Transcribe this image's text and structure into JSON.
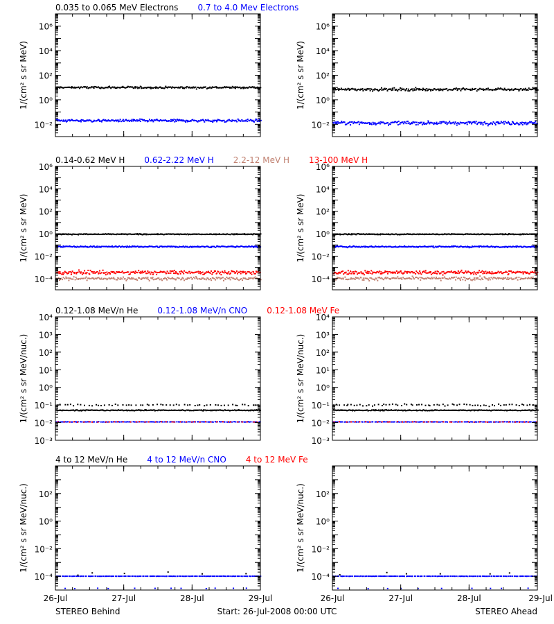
{
  "colors": {
    "black": "#000000",
    "blue": "#0000ff",
    "salmon": "#c08070",
    "red": "#ff0000"
  },
  "footer": {
    "left": "STEREO Behind",
    "center": "Start: 26-Jul-2008 00:00 UTC",
    "right": "STEREO Ahead"
  },
  "x_axis": {
    "range_days": [
      0,
      3
    ],
    "ticks": [
      {
        "value": 0,
        "label": "26-Jul"
      },
      {
        "value": 1,
        "label": "27-Jul"
      },
      {
        "value": 2,
        "label": "28-Jul"
      },
      {
        "value": 3,
        "label": "29-Jul"
      }
    ]
  },
  "chart_data": [
    {
      "type": "scatter",
      "row": "electrons",
      "ylabel": "1/(cm² s sr MeV)",
      "yscale": "log",
      "ylim_log10": [
        -3,
        7
      ],
      "yticks": [
        {
          "exp": -2,
          "label": "10⁻²"
        },
        {
          "exp": 0,
          "label": "10⁰"
        },
        {
          "exp": 2,
          "label": "10²"
        },
        {
          "exp": 4,
          "label": "10⁴"
        },
        {
          "exp": 6,
          "label": "10⁶"
        }
      ],
      "legend": [
        {
          "text": "0.035 to 0.065 MeV Electrons",
          "color": "#000000"
        },
        {
          "text": "0.7 to 4.0 Mev Electrons",
          "color": "#0000ff"
        }
      ],
      "panels": [
        {
          "spacecraft": "STEREO Behind",
          "series": [
            {
              "color": "#000000",
              "level": 10,
              "spread": 0.07,
              "density": 240
            },
            {
              "color": "#0000ff",
              "level": 0.02,
              "spread": 0.09,
              "density": 260
            }
          ]
        },
        {
          "spacecraft": "STEREO Ahead",
          "series": [
            {
              "color": "#000000",
              "level": 7,
              "spread": 0.09,
              "density": 240
            },
            {
              "color": "#0000ff",
              "level": 0.013,
              "spread": 0.12,
              "density": 260
            }
          ]
        }
      ]
    },
    {
      "type": "scatter",
      "row": "protons",
      "ylabel": "1/(cm² s sr MeV)",
      "yscale": "log",
      "ylim_log10": [
        -5,
        6
      ],
      "yticks": [
        {
          "exp": -4,
          "label": "10⁻⁴"
        },
        {
          "exp": -2,
          "label": "10⁻²"
        },
        {
          "exp": 0,
          "label": "10⁰"
        },
        {
          "exp": 2,
          "label": "10²"
        },
        {
          "exp": 4,
          "label": "10⁴"
        },
        {
          "exp": 6,
          "label": "10⁶"
        }
      ],
      "legend": [
        {
          "text": "0.14-0.62 MeV H",
          "color": "#000000"
        },
        {
          "text": "0.62-2.22 MeV H",
          "color": "#0000ff"
        },
        {
          "text": "2.2-12 MeV H",
          "color": "#c08070"
        },
        {
          "text": "13-100 MeV H",
          "color": "#ff0000"
        }
      ],
      "panels": [
        {
          "spacecraft": "STEREO Behind",
          "series": [
            {
              "color": "#000000",
              "level": 0.9,
              "spread": 0.03,
              "density": 260
            },
            {
              "color": "#0000ff",
              "level": 0.07,
              "spread": 0.05,
              "density": 260
            },
            {
              "color": "#c08070",
              "level": 0.0001,
              "spread": 0.12,
              "density": 200
            },
            {
              "color": "#ff0000",
              "level": 0.00035,
              "spread": 0.14,
              "density": 240
            }
          ]
        },
        {
          "spacecraft": "STEREO Ahead",
          "series": [
            {
              "color": "#000000",
              "level": 0.9,
              "spread": 0.03,
              "density": 260
            },
            {
              "color": "#0000ff",
              "level": 0.07,
              "spread": 0.05,
              "density": 260
            },
            {
              "color": "#c08070",
              "level": 0.0001,
              "spread": 0.12,
              "density": 200
            },
            {
              "color": "#ff0000",
              "level": 0.00035,
              "spread": 0.14,
              "density": 240
            }
          ]
        }
      ]
    },
    {
      "type": "scatter",
      "row": "heavy-ions-low",
      "ylabel": "1/(cm² s sr MeV/nuc.)",
      "yscale": "log",
      "ylim_log10": [
        -3,
        4
      ],
      "yticks": [
        {
          "exp": -3,
          "label": "10⁻³"
        },
        {
          "exp": -2,
          "label": "10⁻²"
        },
        {
          "exp": -1,
          "label": "10⁻¹"
        },
        {
          "exp": 0,
          "label": "10⁰"
        },
        {
          "exp": 1,
          "label": "10¹"
        },
        {
          "exp": 2,
          "label": "10²"
        },
        {
          "exp": 3,
          "label": "10³"
        },
        {
          "exp": 4,
          "label": "10⁴"
        }
      ],
      "legend": [
        {
          "text": "0.12-1.08 MeV/n He",
          "color": "#000000"
        },
        {
          "text": "0.12-1.08 MeV/n CNO",
          "color": "#0000ff"
        },
        {
          "text": "0.12-1.08 MeV Fe",
          "color": "#ff0000"
        }
      ],
      "panels": [
        {
          "spacecraft": "STEREO Behind",
          "series": [
            {
              "color": "#000000",
              "level": 0.05,
              "spread": 0.02,
              "density": 260
            },
            {
              "color": "#000000",
              "level": 0.1,
              "spread": 0.04,
              "density": 60
            },
            {
              "color": "#0000ff",
              "level": 0.011,
              "spread": 0.01,
              "density": 140
            },
            {
              "color": "#ff0000",
              "level": 0.011,
              "spread": 0.01,
              "density": 40
            }
          ]
        },
        {
          "spacecraft": "STEREO Ahead",
          "series": [
            {
              "color": "#000000",
              "level": 0.05,
              "spread": 0.02,
              "density": 260
            },
            {
              "color": "#000000",
              "level": 0.1,
              "spread": 0.05,
              "density": 70
            },
            {
              "color": "#0000ff",
              "level": 0.011,
              "spread": 0.01,
              "density": 140
            },
            {
              "color": "#ff0000",
              "level": 0.011,
              "spread": 0.01,
              "density": 40
            }
          ]
        }
      ]
    },
    {
      "type": "scatter",
      "row": "heavy-ions-high",
      "ylabel": "1/(cm² s sr MeV/nuc.)",
      "yscale": "log",
      "ylim_log10": [
        -5,
        4
      ],
      "yticks": [
        {
          "exp": -4,
          "label": "10⁻⁴"
        },
        {
          "exp": -2,
          "label": "10⁻²"
        },
        {
          "exp": 0,
          "label": "10⁰"
        },
        {
          "exp": 2,
          "label": "10²"
        }
      ],
      "legend": [
        {
          "text": "4 to 12 MeV/n He",
          "color": "#000000"
        },
        {
          "text": "4 to 12 MeV/n CNO",
          "color": "#0000ff"
        },
        {
          "text": "4 to 12 MeV Fe",
          "color": "#ff0000"
        }
      ],
      "panels": [
        {
          "spacecraft": "STEREO Behind",
          "series": [
            {
              "color": "#0000ff",
              "level": 0.0001,
              "spread": 0.005,
              "density": 150
            },
            {
              "color": "#000000",
              "level": 0.00015,
              "spread": 0.08,
              "density": 6
            },
            {
              "color": "#0000ff",
              "level": 1.3e-05,
              "spread": 0.02,
              "density": 12
            }
          ]
        },
        {
          "spacecraft": "STEREO Ahead",
          "series": [
            {
              "color": "#0000ff",
              "level": 0.0001,
              "spread": 0.005,
              "density": 150
            },
            {
              "color": "#000000",
              "level": 0.00015,
              "spread": 0.08,
              "density": 6
            },
            {
              "color": "#0000ff",
              "level": 1.3e-05,
              "spread": 0.02,
              "density": 10
            }
          ]
        }
      ]
    }
  ]
}
